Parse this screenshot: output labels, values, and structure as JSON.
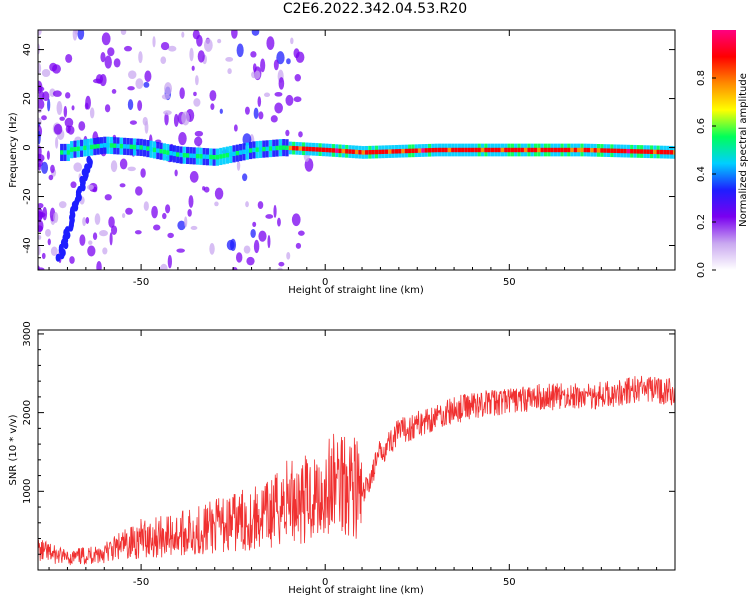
{
  "title": "C2E6.2022.342.04.53.R20",
  "chart_data": [
    {
      "type": "heatmap",
      "name": "spectrogram",
      "xlabel": "Height of straight line (km)",
      "ylabel": "Frequency (Hz)",
      "xlim": [
        -78,
        95
      ],
      "ylim": [
        -50,
        48
      ],
      "xticks": [
        -50,
        0,
        50
      ],
      "xtick_labels": [
        "-50",
        "0",
        "50"
      ],
      "yticks": [
        -40,
        -20,
        0,
        20,
        40
      ],
      "ytick_labels": [
        "-40",
        "-20",
        "0",
        "20",
        "40"
      ],
      "grid": false,
      "band_center_hz": [
        {
          "x": -70,
          "f": -1
        },
        {
          "x": -60,
          "f": 1
        },
        {
          "x": -50,
          "f": 0
        },
        {
          "x": -40,
          "f": -3
        },
        {
          "x": -30,
          "f": -4
        },
        {
          "x": -20,
          "f": -1
        },
        {
          "x": -12,
          "f": 0
        },
        {
          "x": 0,
          "f": -1
        },
        {
          "x": 10,
          "f": -2
        },
        {
          "x": 30,
          "f": -1
        },
        {
          "x": 50,
          "f": -1
        },
        {
          "x": 70,
          "f": -1
        },
        {
          "x": 95,
          "f": -2
        }
      ],
      "colorbar": {
        "label": "Normalized spectral amplitude",
        "range": [
          0.0,
          1.0
        ],
        "ticks": [
          0.0,
          0.2,
          0.4,
          0.6,
          0.8
        ],
        "tick_labels": [
          "0.0",
          "0.2",
          "0.4",
          "0.6",
          "0.8"
        ],
        "colors": [
          "#ffffff",
          "#c9a8f0",
          "#7a00f0",
          "#1e1eff",
          "#00cfff",
          "#00ff5a",
          "#ffff00",
          "#ff8a00",
          "#ff0000",
          "#ff0080"
        ]
      }
    },
    {
      "type": "line",
      "name": "snr",
      "xlabel": "Height of straight line (km)",
      "ylabel": "SNR (10 * v/v)",
      "xlim": [
        -78,
        95
      ],
      "ylim": [
        0,
        3050
      ],
      "xticks": [
        -50,
        0,
        50
      ],
      "xtick_labels": [
        "-50",
        "0",
        "50"
      ],
      "yticks": [
        1000,
        2000,
        3000
      ],
      "ytick_labels": [
        "1000",
        "2000",
        "3000"
      ],
      "grid": false,
      "color": "#f03030",
      "x": [
        -78,
        -70,
        -60,
        -50,
        -40,
        -30,
        -20,
        -15,
        -10,
        -5,
        0,
        5,
        8,
        10,
        15,
        20,
        30,
        40,
        50,
        60,
        70,
        80,
        85,
        90,
        95
      ],
      "y": [
        250,
        150,
        220,
        400,
        450,
        550,
        650,
        700,
        900,
        900,
        1000,
        1200,
        1100,
        900,
        1500,
        1750,
        1950,
        2100,
        2150,
        2200,
        2200,
        2250,
        2300,
        2280,
        2250
      ]
    }
  ]
}
